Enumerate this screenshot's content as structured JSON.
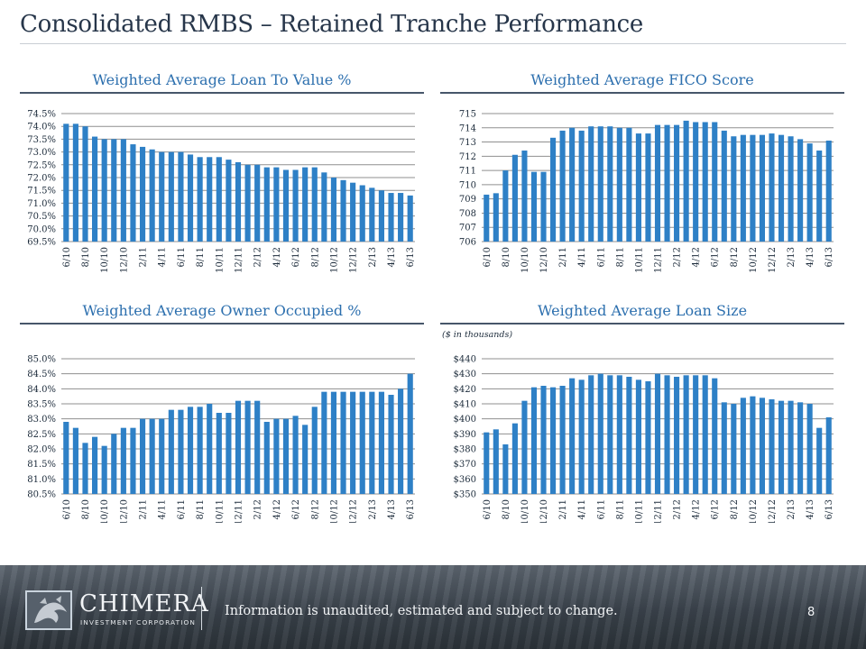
{
  "slide": {
    "title": "Consolidated RMBS – Retained Tranche Performance",
    "page_number": "8"
  },
  "footer": {
    "logo_name": "CHIMERA",
    "logo_sub": "INVESTMENT CORPORATION",
    "disclaimer": "Information is unaudited, estimated and subject to change."
  },
  "colors": {
    "bar": "#2e80c6",
    "title": "#2c6fae",
    "rule": "#47566a",
    "gridline": "#8f8f8f"
  },
  "chart_data": [
    {
      "id": "ltv",
      "type": "bar",
      "title": "Weighted Average Loan To Value %",
      "note": "",
      "categories": [
        "6/10",
        "7/10",
        "8/10",
        "9/10",
        "10/10",
        "11/10",
        "12/10",
        "1/11",
        "2/11",
        "3/11",
        "4/11",
        "5/11",
        "6/11",
        "7/11",
        "8/11",
        "9/11",
        "10/11",
        "11/11",
        "12/11",
        "1/12",
        "2/12",
        "3/12",
        "4/12",
        "5/12",
        "6/12",
        "7/12",
        "8/12",
        "9/12",
        "10/12",
        "11/12",
        "12/12",
        "1/13",
        "2/13",
        "3/13",
        "4/13",
        "5/13",
        "6/13"
      ],
      "tick_labels": [
        "6/10",
        "",
        "8/10",
        "",
        "10/10",
        "",
        "12/10",
        "",
        "2/11",
        "",
        "4/11",
        "",
        "6/11",
        "",
        "8/11",
        "",
        "10/11",
        "",
        "12/11",
        "",
        "2/12",
        "",
        "4/12",
        "",
        "6/12",
        "",
        "8/12",
        "",
        "10/12",
        "",
        "12/12",
        "",
        "2/13",
        "",
        "4/13",
        "",
        "6/13"
      ],
      "values": [
        74.1,
        74.1,
        74.0,
        73.6,
        73.5,
        73.5,
        73.5,
        73.3,
        73.2,
        73.1,
        73.0,
        73.0,
        73.0,
        72.9,
        72.8,
        72.8,
        72.8,
        72.7,
        72.6,
        72.5,
        72.5,
        72.4,
        72.4,
        72.3,
        72.3,
        72.4,
        72.4,
        72.2,
        72.0,
        71.9,
        71.8,
        71.7,
        71.6,
        71.5,
        71.4,
        71.4,
        71.3
      ],
      "ylim": [
        69.5,
        74.5
      ],
      "yticks": [
        69.5,
        70.0,
        70.5,
        71.0,
        71.5,
        72.0,
        72.5,
        73.0,
        73.5,
        74.0,
        74.5
      ],
      "ytick_labels": [
        "69.5%",
        "70.0%",
        "70.5%",
        "71.0%",
        "71.5%",
        "72.0%",
        "72.5%",
        "73.0%",
        "73.5%",
        "74.0%",
        "74.5%"
      ],
      "grid": true,
      "legend": "none"
    },
    {
      "id": "fico",
      "type": "bar",
      "title": "Weighted Average FICO Score",
      "note": "",
      "categories": [
        "6/10",
        "7/10",
        "8/10",
        "9/10",
        "10/10",
        "11/10",
        "12/10",
        "1/11",
        "2/11",
        "3/11",
        "4/11",
        "5/11",
        "6/11",
        "7/11",
        "8/11",
        "9/11",
        "10/11",
        "11/11",
        "12/11",
        "1/12",
        "2/12",
        "3/12",
        "4/12",
        "5/12",
        "6/12",
        "7/12",
        "8/12",
        "9/12",
        "10/12",
        "11/12",
        "12/12",
        "1/13",
        "2/13",
        "3/13",
        "4/13",
        "5/13",
        "6/13"
      ],
      "tick_labels": [
        "6/10",
        "",
        "8/10",
        "",
        "10/10",
        "",
        "12/10",
        "",
        "2/11",
        "",
        "4/11",
        "",
        "6/11",
        "",
        "8/11",
        "",
        "10/11",
        "",
        "12/11",
        "",
        "2/12",
        "",
        "4/12",
        "",
        "6/12",
        "",
        "8/12",
        "",
        "10/12",
        "",
        "12/12",
        "",
        "2/13",
        "",
        "4/13",
        "",
        "6/13"
      ],
      "values": [
        709.3,
        709.4,
        711.0,
        712.1,
        712.4,
        710.9,
        710.9,
        713.3,
        713.8,
        714.0,
        713.8,
        714.1,
        714.1,
        714.1,
        714.0,
        714.0,
        713.6,
        713.6,
        714.2,
        714.2,
        714.2,
        714.5,
        714.4,
        714.4,
        714.4,
        713.8,
        713.4,
        713.5,
        713.5,
        713.5,
        713.6,
        713.5,
        713.4,
        713.2,
        712.9,
        712.4,
        713.1
      ],
      "ylim": [
        706,
        715
      ],
      "yticks": [
        706,
        707,
        708,
        709,
        710,
        711,
        712,
        713,
        714,
        715
      ],
      "ytick_labels": [
        "706",
        "707",
        "708",
        "709",
        "710",
        "711",
        "712",
        "713",
        "714",
        "715"
      ],
      "grid": true,
      "legend": "none"
    },
    {
      "id": "owner",
      "type": "bar",
      "title": "Weighted Average Owner Occupied %",
      "note": "",
      "categories": [
        "6/10",
        "7/10",
        "8/10",
        "9/10",
        "10/10",
        "11/10",
        "12/10",
        "1/11",
        "2/11",
        "3/11",
        "4/11",
        "5/11",
        "6/11",
        "7/11",
        "8/11",
        "9/11",
        "10/11",
        "11/11",
        "12/11",
        "1/12",
        "2/12",
        "3/12",
        "4/12",
        "5/12",
        "6/12",
        "7/12",
        "8/12",
        "9/12",
        "10/12",
        "11/12",
        "12/12",
        "1/13",
        "2/13",
        "3/13",
        "4/13",
        "5/13",
        "6/13"
      ],
      "tick_labels": [
        "6/10",
        "",
        "8/10",
        "",
        "10/10",
        "",
        "12/10",
        "",
        "2/11",
        "",
        "4/11",
        "",
        "6/11",
        "",
        "8/11",
        "",
        "10/11",
        "",
        "12/11",
        "",
        "2/12",
        "",
        "4/12",
        "",
        "6/12",
        "",
        "8/12",
        "",
        "10/12",
        "",
        "12/12",
        "",
        "2/13",
        "",
        "4/13",
        "",
        "6/13"
      ],
      "values": [
        82.9,
        82.7,
        82.2,
        82.4,
        82.1,
        82.5,
        82.7,
        82.7,
        83.0,
        83.0,
        83.0,
        83.3,
        83.3,
        83.4,
        83.4,
        83.5,
        83.2,
        83.2,
        83.6,
        83.6,
        83.6,
        82.9,
        83.0,
        83.0,
        83.1,
        82.8,
        83.4,
        83.9,
        83.9,
        83.9,
        83.9,
        83.9,
        83.9,
        83.9,
        83.8,
        84.0,
        84.5
      ],
      "ylim": [
        80.5,
        85.0
      ],
      "yticks": [
        80.5,
        81.0,
        81.5,
        82.0,
        82.5,
        83.0,
        83.5,
        84.0,
        84.5,
        85.0
      ],
      "ytick_labels": [
        "80.5%",
        "81.0%",
        "81.5%",
        "82.0%",
        "82.5%",
        "83.0%",
        "83.5%",
        "84.0%",
        "84.5%",
        "85.0%"
      ],
      "grid": true,
      "legend": "none"
    },
    {
      "id": "loansize",
      "type": "bar",
      "title": "Weighted Average Loan Size",
      "note": "($ in thousands)",
      "categories": [
        "6/10",
        "7/10",
        "8/10",
        "9/10",
        "10/10",
        "11/10",
        "12/10",
        "1/11",
        "2/11",
        "3/11",
        "4/11",
        "5/11",
        "6/11",
        "7/11",
        "8/11",
        "9/11",
        "10/11",
        "11/11",
        "12/11",
        "1/12",
        "2/12",
        "3/12",
        "4/12",
        "5/12",
        "6/12",
        "7/12",
        "8/12",
        "9/12",
        "10/12",
        "11/12",
        "12/12",
        "1/13",
        "2/13",
        "3/13",
        "4/13",
        "5/13",
        "6/13"
      ],
      "tick_labels": [
        "6/10",
        "",
        "8/10",
        "",
        "10/10",
        "",
        "12/10",
        "",
        "2/11",
        "",
        "4/11",
        "",
        "6/11",
        "",
        "8/11",
        "",
        "10/11",
        "",
        "12/11",
        "",
        "2/12",
        "",
        "4/12",
        "",
        "6/12",
        "",
        "8/12",
        "",
        "10/12",
        "",
        "12/12",
        "",
        "2/13",
        "",
        "4/13",
        "",
        "6/13"
      ],
      "values": [
        391,
        393,
        383,
        397,
        412,
        421,
        422,
        421,
        422,
        427,
        426,
        429,
        430,
        429,
        429,
        428,
        426,
        425,
        430,
        429,
        428,
        429,
        429,
        429,
        427,
        411,
        410,
        414,
        415,
        414,
        413,
        412,
        412,
        411,
        410,
        394,
        401
      ],
      "ylim": [
        350,
        440
      ],
      "yticks": [
        350,
        360,
        370,
        380,
        390,
        400,
        410,
        420,
        430,
        440
      ],
      "ytick_labels": [
        "$350",
        "$360",
        "$370",
        "$380",
        "$390",
        "$400",
        "$410",
        "$420",
        "$430",
        "$440"
      ],
      "grid": true,
      "legend": "none"
    }
  ]
}
